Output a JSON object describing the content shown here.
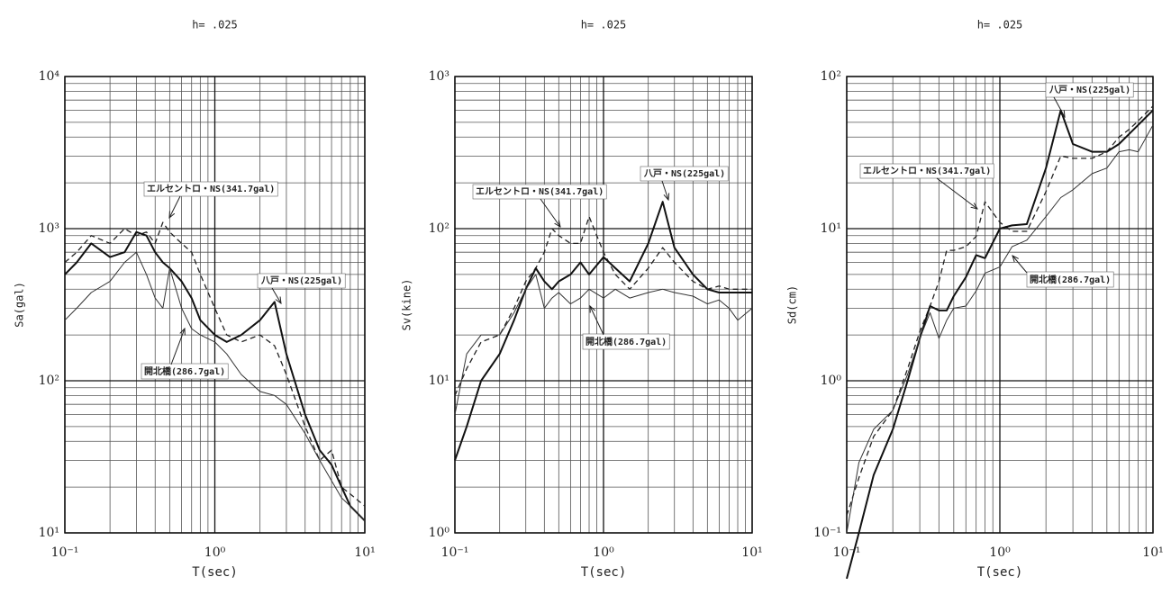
{
  "chart_data": [
    {
      "type": "line",
      "title": "h= .025",
      "x_label": "T(sec)",
      "y_label": "Sa(gal)",
      "x": [
        0.1,
        0.12,
        0.15,
        0.2,
        0.25,
        0.3,
        0.35,
        0.4,
        0.45,
        0.5,
        0.6,
        0.7,
        0.8,
        1.0,
        1.2,
        1.5,
        2.0,
        2.5,
        3,
        4,
        5,
        6,
        7,
        8,
        10
      ],
      "series": [
        {
          "name": "エルセントロ・NS(341.7gal)",
          "color": "#222",
          "linestyle": "dashed",
          "values": [
            600,
            700,
            900,
            800,
            1000,
            900,
            950,
            800,
            1100,
            950,
            800,
            700,
            500,
            300,
            200,
            180,
            200,
            170,
            110,
            50,
            30,
            35,
            20,
            18,
            15
          ]
        },
        {
          "name": "八戸・NS(225gal)",
          "color": "#111",
          "linestyle": "heavy",
          "values": [
            500,
            600,
            800,
            650,
            700,
            950,
            900,
            700,
            600,
            550,
            450,
            350,
            250,
            200,
            180,
            200,
            250,
            330,
            150,
            60,
            35,
            28,
            20,
            15,
            12
          ]
        },
        {
          "name": "開北橋(286.7gal)",
          "color": "#333",
          "linestyle": "thin",
          "values": [
            250,
            300,
            380,
            450,
            600,
            700,
            500,
            350,
            300,
            550,
            300,
            220,
            200,
            180,
            150,
            110,
            85,
            80,
            70,
            45,
            30,
            22,
            17,
            15,
            12
          ]
        }
      ],
      "log_x": true,
      "log_y": true,
      "grid": true,
      "xlim": [
        0.1,
        10
      ],
      "xticks": [
        {
          "value": 0.1,
          "label": "10⁻¹"
        },
        {
          "value": 1,
          "label": "10⁰"
        },
        {
          "value": 10,
          "label": "10¹"
        }
      ],
      "x_minor_ticks": [
        0.2,
        0.3,
        0.4,
        0.5,
        0.6,
        0.7,
        0.8,
        0.9,
        2,
        3,
        4,
        5,
        6,
        7,
        8,
        9
      ],
      "ylim": [
        10,
        10000
      ],
      "yticks": [
        {
          "value": 10,
          "label": "10¹"
        },
        {
          "value": 100,
          "label": "10²"
        },
        {
          "value": 1000,
          "label": "10³"
        },
        {
          "value": 10000,
          "label": "10⁴"
        }
      ],
      "y_minor_ticks": [
        20,
        30,
        40,
        50,
        60,
        70,
        80,
        90,
        200,
        300,
        400,
        500,
        600,
        700,
        800,
        900,
        2000,
        3000,
        4000,
        5000,
        6000,
        7000,
        8000,
        9000
      ]
    },
    {
      "type": "line",
      "title": "h= .025",
      "x_label": "T(sec)",
      "y_label": "Sv(kine)",
      "x": [
        0.1,
        0.12,
        0.15,
        0.2,
        0.25,
        0.3,
        0.35,
        0.4,
        0.45,
        0.5,
        0.6,
        0.7,
        0.8,
        1.0,
        1.2,
        1.5,
        2.0,
        2.5,
        3,
        4,
        5,
        6,
        7,
        8,
        10
      ],
      "series": [
        {
          "name": "エルセントロ・NS(341.7gal)",
          "color": "#222",
          "linestyle": "dashed",
          "values": [
            8,
            12,
            18,
            20,
            30,
            45,
            55,
            70,
            100,
            90,
            80,
            80,
            120,
            70,
            50,
            40,
            55,
            75,
            60,
            45,
            40,
            42,
            40,
            40,
            40
          ]
        },
        {
          "name": "八戸・NS(225gal)",
          "color": "#111",
          "linestyle": "heavy",
          "values": [
            3,
            5,
            10,
            15,
            25,
            40,
            55,
            45,
            40,
            45,
            50,
            60,
            50,
            65,
            55,
            45,
            80,
            150,
            75,
            50,
            40,
            38,
            38,
            38,
            38
          ]
        },
        {
          "name": "開北橋(286.7gal)",
          "color": "#333",
          "linestyle": "thin",
          "values": [
            6,
            15,
            20,
            20,
            28,
            40,
            50,
            30,
            35,
            38,
            32,
            35,
            40,
            35,
            40,
            35,
            38,
            40,
            38,
            36,
            32,
            34,
            30,
            25,
            30
          ]
        }
      ],
      "log_x": true,
      "log_y": true,
      "grid": true,
      "xlim": [
        0.1,
        10
      ],
      "xticks": [
        {
          "value": 0.1,
          "label": "10⁻¹"
        },
        {
          "value": 1,
          "label": "10⁰"
        },
        {
          "value": 10,
          "label": "10¹"
        }
      ],
      "x_minor_ticks": [
        0.2,
        0.3,
        0.4,
        0.5,
        0.6,
        0.7,
        0.8,
        0.9,
        2,
        3,
        4,
        5,
        6,
        7,
        8,
        9
      ],
      "ylim": [
        1,
        1000
      ],
      "yticks": [
        {
          "value": 1,
          "label": "10⁰"
        },
        {
          "value": 10,
          "label": "10¹"
        },
        {
          "value": 100,
          "label": "10²"
        },
        {
          "value": 1000,
          "label": "10³"
        }
      ],
      "y_minor_ticks": [
        2,
        3,
        4,
        5,
        6,
        7,
        8,
        9,
        20,
        30,
        40,
        50,
        60,
        70,
        80,
        90,
        200,
        300,
        400,
        500,
        600,
        700,
        800,
        900
      ]
    },
    {
      "type": "line",
      "title": "h= .025",
      "x_label": "T(sec)",
      "y_label": "Sd(cm)",
      "x": [
        0.1,
        0.12,
        0.15,
        0.2,
        0.25,
        0.3,
        0.35,
        0.4,
        0.45,
        0.5,
        0.6,
        0.7,
        0.8,
        1.0,
        1.2,
        1.5,
        2.0,
        2.5,
        3,
        4,
        5,
        6,
        7,
        8,
        10
      ],
      "series": [
        {
          "name": "エルセントロ・NS(341.7gal)",
          "color": "#222",
          "linestyle": "dashed",
          "values": [
            0.13,
            0.23,
            0.43,
            0.64,
            1.2,
            2.1,
            3.1,
            4.5,
            7.2,
            7.2,
            7.6,
            8.9,
            15,
            11,
            9.6,
            9.6,
            17.5,
            30,
            29,
            29,
            32,
            40,
            45,
            51,
            64
          ]
        },
        {
          "name": "八戸・NS(225gal)",
          "color": "#111",
          "linestyle": "heavy",
          "values": [
            0.05,
            0.1,
            0.24,
            0.48,
            1.0,
            1.9,
            3.1,
            2.9,
            2.9,
            3.6,
            4.8,
            6.7,
            6.4,
            10,
            10.5,
            10.7,
            25,
            60,
            36,
            32,
            32,
            36,
            42,
            48,
            60
          ]
        },
        {
          "name": "開北橋(286.7gal)",
          "color": "#333",
          "linestyle": "thin",
          "values": [
            0.1,
            0.29,
            0.48,
            0.64,
            1.1,
            1.9,
            2.8,
            1.9,
            2.5,
            3.0,
            3.1,
            3.9,
            5.1,
            5.6,
            7.6,
            8.4,
            12,
            16,
            18,
            23,
            25,
            32,
            33,
            32,
            48
          ]
        }
      ],
      "log_x": true,
      "log_y": true,
      "grid": true,
      "xlim": [
        0.1,
        10
      ],
      "xticks": [
        {
          "value": 0.1,
          "label": "10⁻¹"
        },
        {
          "value": 1,
          "label": "10⁰"
        },
        {
          "value": 10,
          "label": "10¹"
        }
      ],
      "x_minor_ticks": [
        0.2,
        0.3,
        0.4,
        0.5,
        0.6,
        0.7,
        0.8,
        0.9,
        2,
        3,
        4,
        5,
        6,
        7,
        8,
        9
      ],
      "ylim": [
        0.1,
        100
      ],
      "yticks": [
        {
          "value": 0.1,
          "label": "10⁻¹"
        },
        {
          "value": 1,
          "label": "10⁰"
        },
        {
          "value": 10,
          "label": "10¹"
        },
        {
          "value": 100,
          "label": "10²"
        }
      ],
      "y_minor_ticks": [
        0.2,
        0.3,
        0.4,
        0.5,
        0.6,
        0.7,
        0.8,
        0.9,
        2,
        3,
        4,
        5,
        6,
        7,
        8,
        9,
        20,
        30,
        40,
        50,
        60,
        70,
        80,
        90
      ]
    }
  ]
}
